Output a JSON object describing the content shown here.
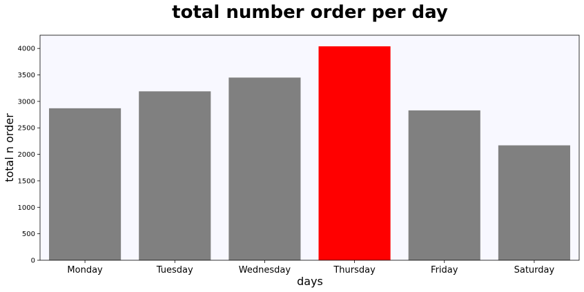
{
  "chart_data": {
    "type": "bar",
    "title": "total number order per day",
    "xlabel": "days",
    "ylabel": "total n order",
    "categories": [
      "Monday",
      "Tuesday",
      "Wednesday",
      "Thursday",
      "Friday",
      "Saturday"
    ],
    "values": [
      2870,
      3190,
      3450,
      4040,
      2830,
      2170
    ],
    "highlight_index": 3,
    "ylim": [
      0,
      4250
    ],
    "yticks": [
      0,
      500,
      1000,
      1500,
      2000,
      2500,
      3000,
      3500,
      4000
    ],
    "grid": false,
    "legend": "none"
  },
  "colors": {
    "bar": "#808080",
    "highlight": "#ff0000",
    "plot_background": "#f8f8ff",
    "figure_background": "#ffffff"
  }
}
